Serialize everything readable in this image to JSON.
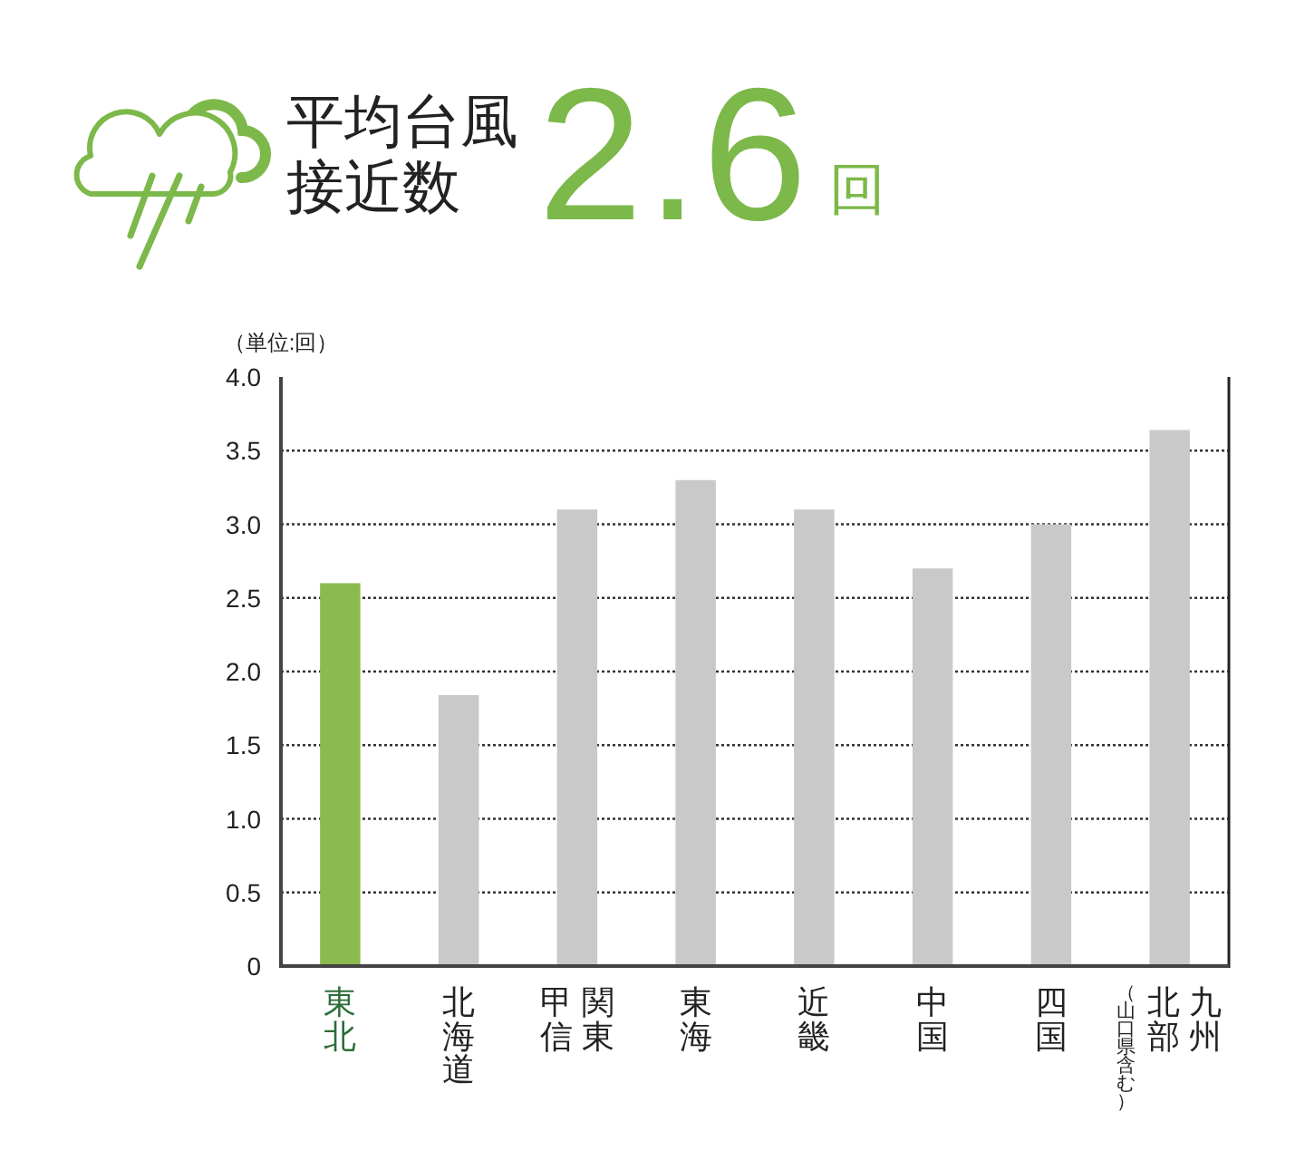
{
  "chart_data": {
    "type": "bar",
    "title": "平均台風接近数",
    "subtitle": "2.6",
    "annotations": [
      "回"
    ],
    "ylabel": "（単位:回）",
    "categories": [
      "東北",
      "北海道",
      "関東甲信",
      "東海",
      "近畿",
      "中国",
      "四国",
      "九州北部（山口県含む）"
    ],
    "values": [
      2.6,
      1.84,
      3.1,
      3.3,
      3.1,
      2.7,
      3.0,
      3.64
    ],
    "colors": [
      "#8aba50",
      "#c9c9c9",
      "#c9c9c9",
      "#c9c9c9",
      "#c9c9c9",
      "#c9c9c9",
      "#c9c9c9",
      "#c9c9c9"
    ],
    "ylim": [
      0,
      4
    ],
    "yticks": [
      0,
      0.5,
      {
        "value": 1,
        "label": "1.0"
      },
      1.5,
      {
        "value": 2,
        "label": "2.0"
      },
      2.5,
      {
        "value": 3,
        "label": "3.0"
      },
      3.5,
      {
        "value": 4,
        "label": "4.0"
      }
    ],
    "grid": "y"
  }
}
